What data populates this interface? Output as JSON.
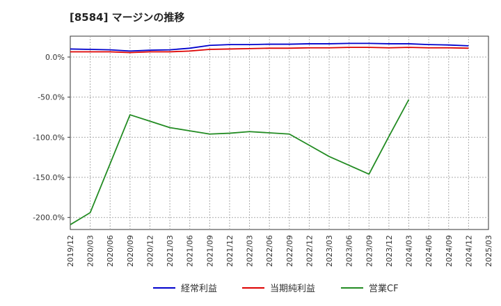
{
  "chart_data": {
    "type": "line",
    "title": "[8584]  マージンの推移",
    "xlabel": "",
    "ylabel": "",
    "ylim": [
      -215,
      26
    ],
    "yticks": [
      0,
      -50,
      -100,
      -150,
      -200
    ],
    "ytick_labels": [
      "0.0%",
      "-50.0%",
      "-100.0%",
      "-150.0%",
      "-200.0%"
    ],
    "x_ticks": [
      "2019/12",
      "2020/03",
      "2020/06",
      "2020/09",
      "2020/12",
      "2021/03",
      "2021/06",
      "2021/09",
      "2021/12",
      "2022/03",
      "2022/06",
      "2022/09",
      "2022/12",
      "2023/03",
      "2023/06",
      "2023/09",
      "2023/12",
      "2024/03",
      "2024/06",
      "2024/09",
      "2024/12",
      "2025/03"
    ],
    "grid": true,
    "legend_position": "bottom",
    "series": [
      {
        "name": "経常利益",
        "color": "#0000cc",
        "values": [
          10,
          9.5,
          9,
          7.5,
          8.5,
          9,
          11,
          14.5,
          15.5,
          15.5,
          16,
          16,
          16.5,
          16.5,
          17,
          17,
          16.5,
          16.5,
          15.5,
          15,
          14
        ]
      },
      {
        "name": "当期純利益",
        "color": "#dd0000",
        "values": [
          6.5,
          6.5,
          6.5,
          5.5,
          6.5,
          6.5,
          7.5,
          9.5,
          10,
          10.5,
          11,
          11,
          11.5,
          11.5,
          12,
          12,
          11.5,
          12,
          11.5,
          11.5,
          11
        ]
      },
      {
        "name": "営業CF",
        "color": "#228b22",
        "values": [
          -209,
          -194,
          -133,
          -72,
          -80,
          -88,
          -92,
          -96,
          -95,
          -93,
          -94.5,
          -96,
          -110,
          -124,
          -135,
          -146,
          -99,
          -53,
          null,
          null,
          null
        ]
      }
    ]
  }
}
